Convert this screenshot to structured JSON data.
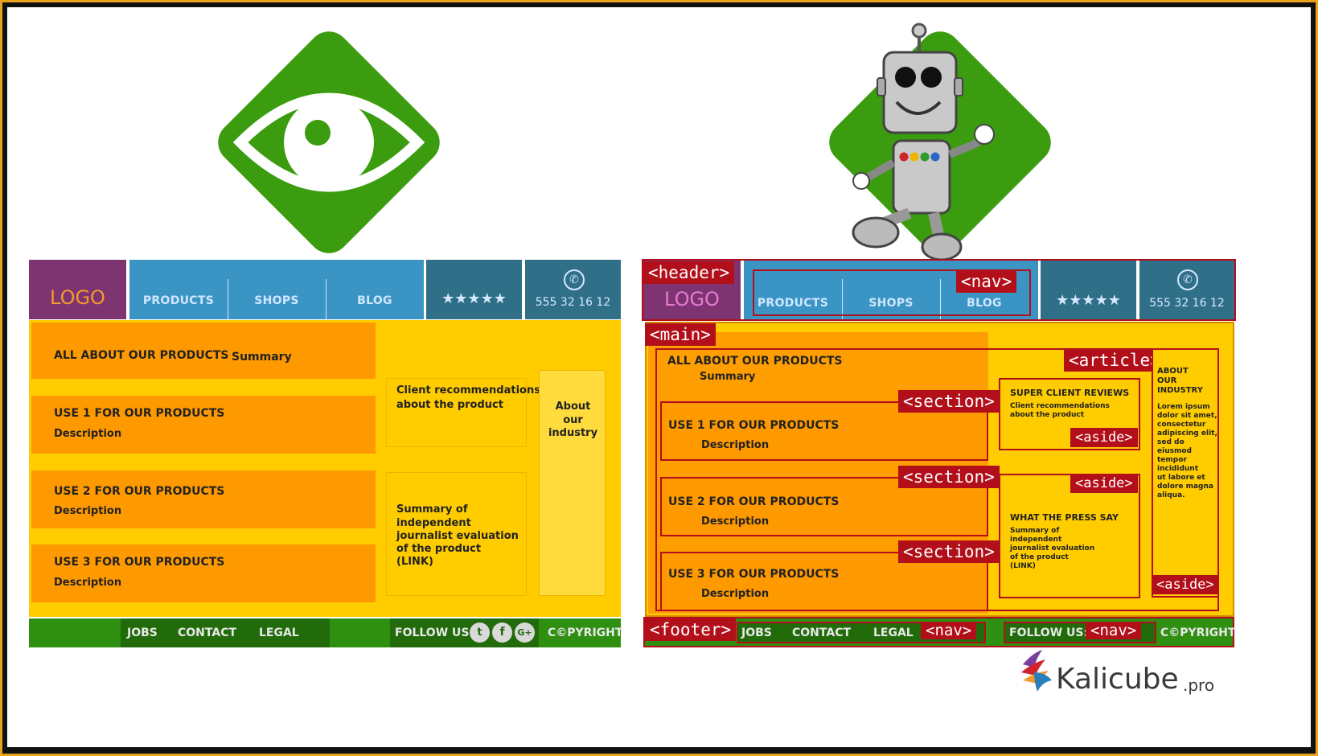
{
  "colors": {
    "logo_bg": "#7d3470",
    "logo_text": "#f29a2e",
    "nav_bg": "#3b95c4",
    "header_dark": "#2f6f88",
    "main_bg": "#ffcc00",
    "section_bg": "#ff9900",
    "footer_bg": "#2f8f10",
    "footer_dark": "#226b0a",
    "tag_red": "#b30f1a",
    "diamond_green": "#3a9c0e"
  },
  "icons": {
    "left_logo": "eye-icon",
    "right_logo": "robot-mascot-icon",
    "phone": "phone-icon",
    "rating": "stars-icon",
    "social": [
      "twitter-icon",
      "facebook-icon",
      "google-plus-icon"
    ],
    "brand": "kalicube-bird-icon"
  },
  "left": {
    "header": {
      "logo": "LOGO",
      "nav": [
        "PRODUCTS",
        "SHOPS",
        "BLOG"
      ],
      "stars": "★★★★★",
      "phone": "555 32 16 12"
    },
    "sections": [
      {
        "title": "ALL ABOUT OUR PRODUCTS",
        "sub": "Summary"
      },
      {
        "title": "USE 1 FOR OUR PRODUCTS",
        "sub": "Description"
      },
      {
        "title": "USE 2 FOR OUR PRODUCTS",
        "sub": "Description"
      },
      {
        "title": "USE 3 FOR OUR PRODUCTS",
        "sub": "Description"
      }
    ],
    "aside1": [
      "Client recommendations",
      "about the product"
    ],
    "aside2": [
      "Summary of",
      "independent",
      "journalist evaluation",
      "of the product",
      "(LINK)"
    ],
    "aside3": [
      "About",
      "our",
      "industry"
    ],
    "footer": {
      "links": [
        "JOBS",
        "CONTACT",
        "LEGAL"
      ],
      "follow": "FOLLOW US:",
      "copyright": "C©PYRIGHT"
    }
  },
  "right": {
    "tags": {
      "header": "<header>",
      "nav": "<nav>",
      "main": "<main>",
      "article": "<article>",
      "section": "<section>",
      "aside": "<aside>",
      "footer": "<footer>"
    },
    "header": {
      "logo": "LOGO",
      "nav": [
        "PRODUCTS",
        "SHOPS",
        "BLOG"
      ],
      "stars": "★★★★★",
      "phone": "555 32 16 12"
    },
    "sections": [
      {
        "title": "ALL ABOUT OUR PRODUCTS",
        "sub": "Summary"
      },
      {
        "title": "USE 1 FOR OUR PRODUCTS",
        "sub": "Description"
      },
      {
        "title": "USE 2 FOR OUR PRODUCTS",
        "sub": "Description"
      },
      {
        "title": "USE 3 FOR OUR PRODUCTS",
        "sub": "Description"
      }
    ],
    "aside1": {
      "title": "SUPER CLIENT REVIEWS",
      "lines": [
        "Client recommendations",
        "about the product"
      ]
    },
    "aside2": {
      "title": "WHAT THE PRESS SAY",
      "lines": [
        "Summary of",
        "independent",
        "journalist evaluation",
        "of the product",
        "(LINK)"
      ]
    },
    "aside3": {
      "title": [
        "ABOUT",
        "OUR",
        "INDUSTRY"
      ],
      "lines": [
        "Lorem ipsum",
        "dolor sit amet,",
        "consectetur",
        "adipiscing elit,",
        "sed do",
        "eiusmod",
        "tempor",
        "incididunt",
        "ut labore et",
        "dolore magna",
        "aliqua."
      ]
    },
    "footer": {
      "links": [
        "JOBS",
        "CONTACT",
        "LEGAL"
      ],
      "follow": "FOLLOW US:",
      "copyright": "C©PYRIGHT"
    }
  },
  "brand": {
    "name": "Kalicube",
    "suffix": ".pro"
  }
}
